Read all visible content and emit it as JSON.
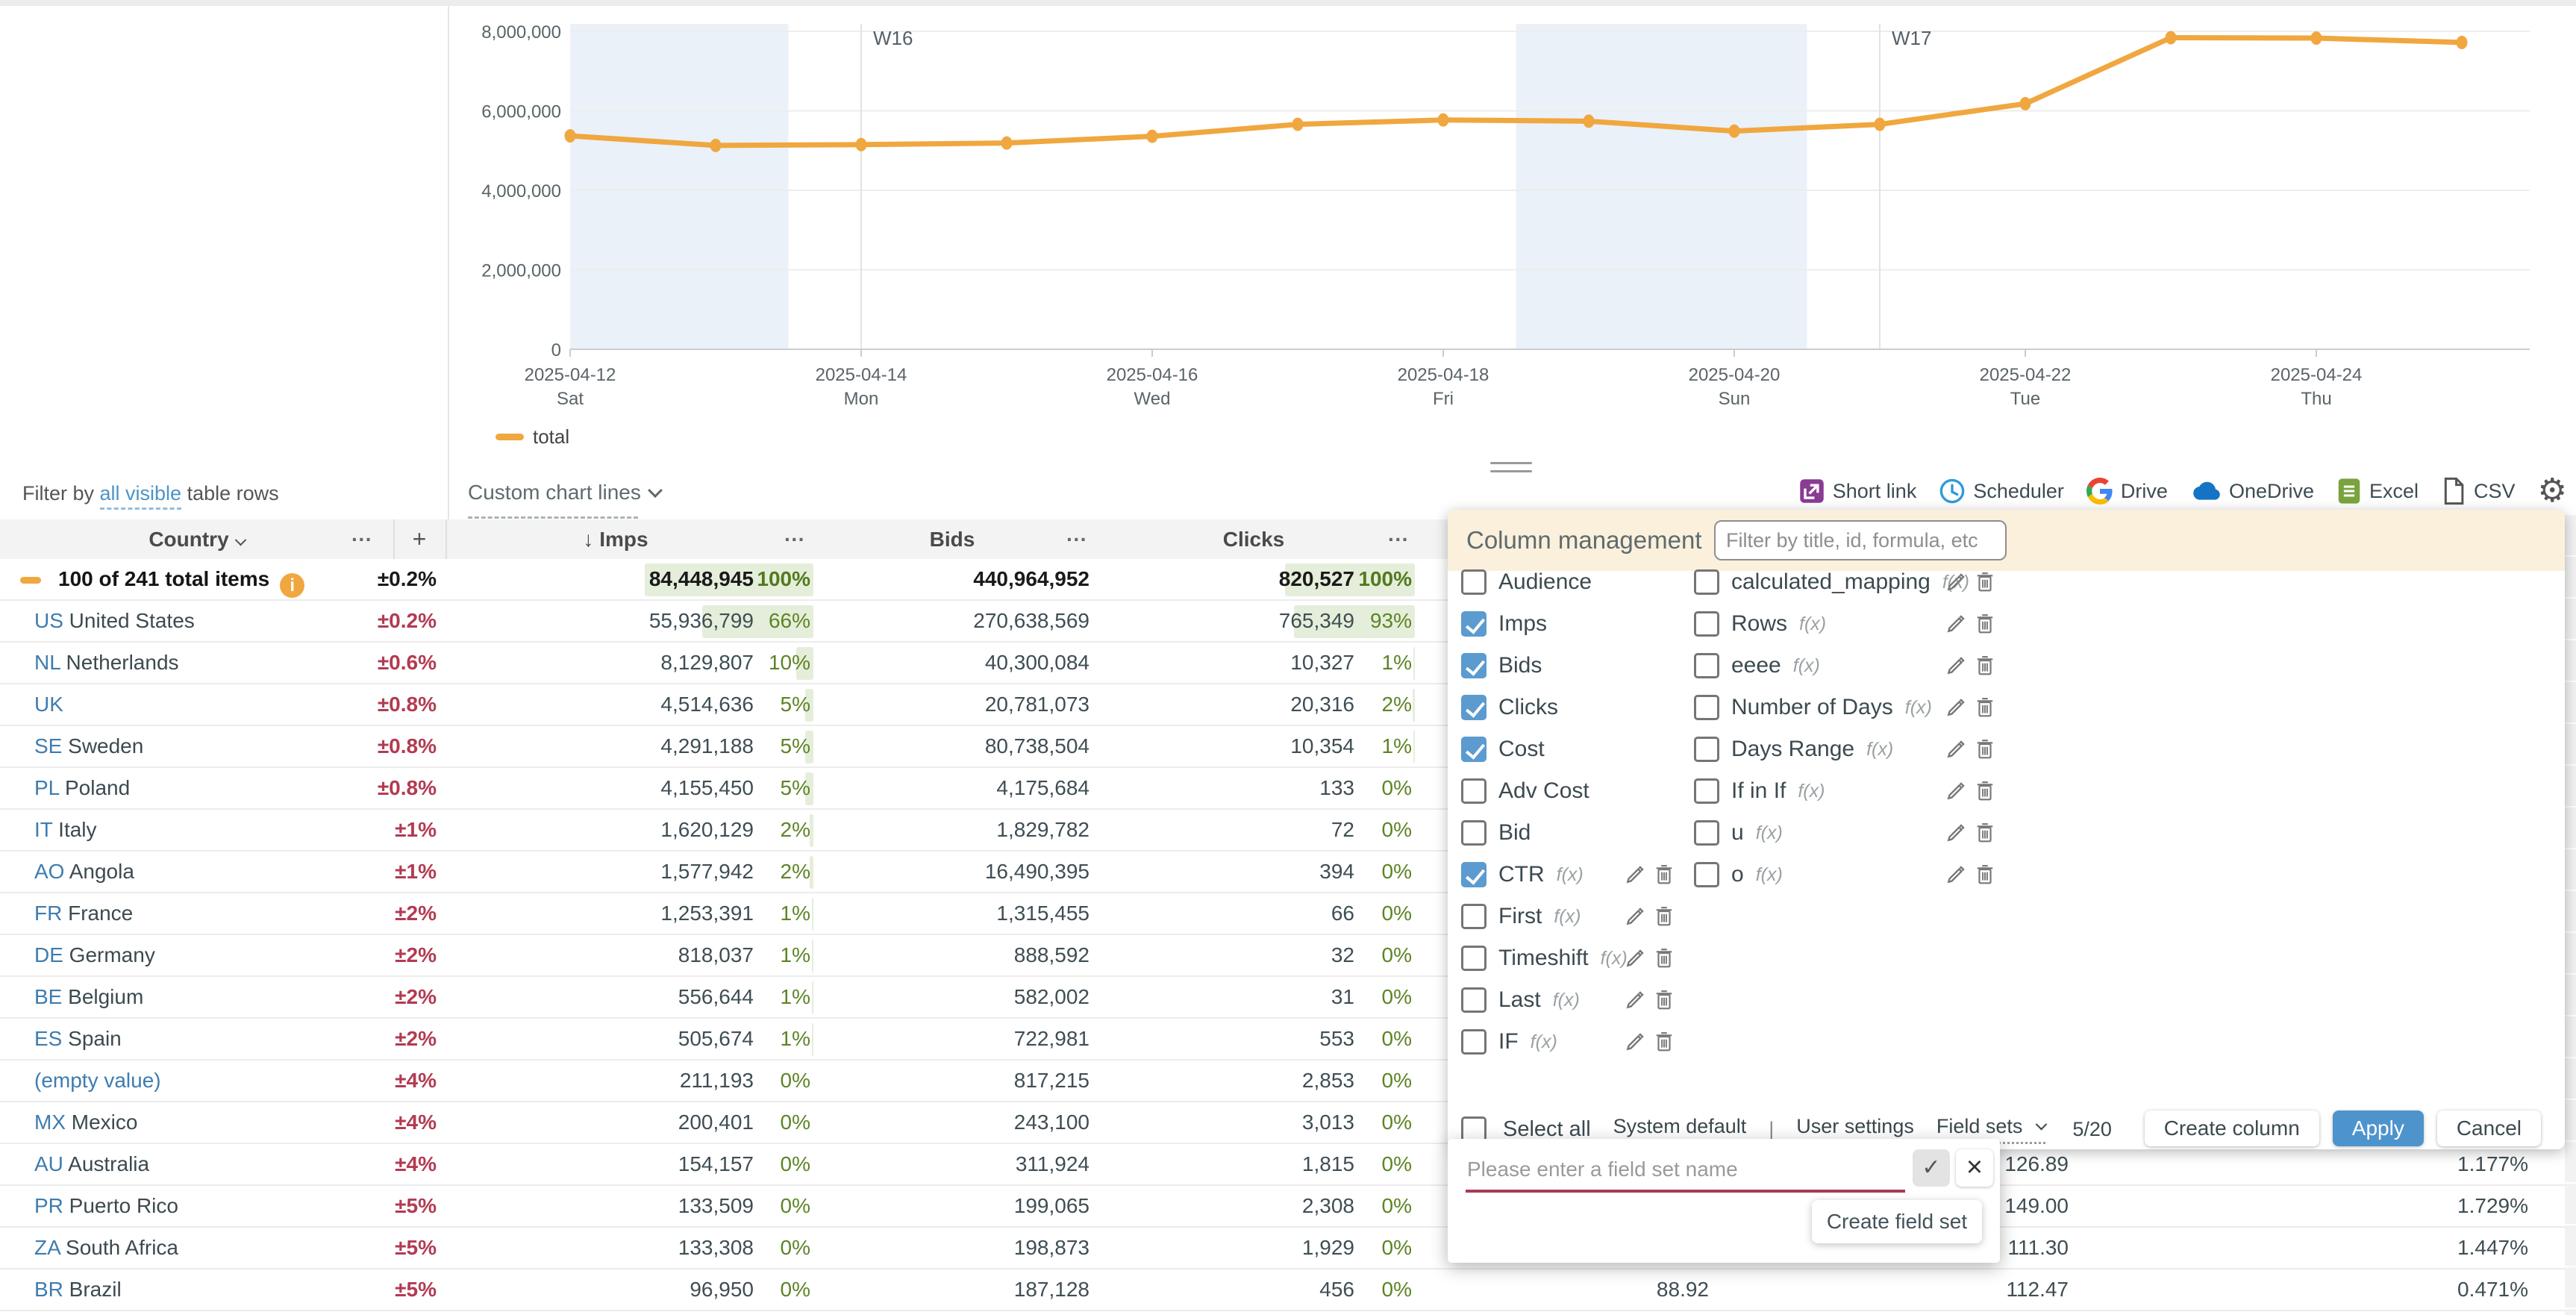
{
  "chart_data": {
    "type": "line",
    "title": "",
    "legend": "total",
    "line_color": "#F0A73F",
    "weekend_band_color": "#EAF1F8",
    "x": [
      "2025-04-12",
      "2025-04-13",
      "2025-04-14",
      "2025-04-15",
      "2025-04-16",
      "2025-04-17",
      "2025-04-18",
      "2025-04-19",
      "2025-04-20",
      "2025-04-21",
      "2025-04-22",
      "2025-04-23",
      "2025-04-24",
      "2025-04-25"
    ],
    "values": [
      5370000,
      5130000,
      5150000,
      5190000,
      5360000,
      5660000,
      5770000,
      5740000,
      5490000,
      5660000,
      6180000,
      7840000,
      7830000,
      7720000
    ],
    "ylim": [
      0,
      8000000
    ],
    "grid": true,
    "legend_position": "bottom-left",
    "y_ticks": [
      {
        "value": 0,
        "label": "0"
      },
      {
        "value": 2000000,
        "label": "2,000,000"
      },
      {
        "value": 4000000,
        "label": "4,000,000"
      },
      {
        "value": 6000000,
        "label": "6,000,000"
      },
      {
        "value": 8000000,
        "label": "8,000,000"
      }
    ],
    "x_ticks": [
      {
        "index": 0,
        "date": "2025-04-12",
        "day": "Sat"
      },
      {
        "index": 2,
        "date": "2025-04-14",
        "day": "Mon"
      },
      {
        "index": 4,
        "date": "2025-04-16",
        "day": "Wed"
      },
      {
        "index": 6,
        "date": "2025-04-18",
        "day": "Fri"
      },
      {
        "index": 8,
        "date": "2025-04-20",
        "day": "Sun"
      },
      {
        "index": 10,
        "date": "2025-04-22",
        "day": "Tue"
      },
      {
        "index": 12,
        "date": "2025-04-24",
        "day": "Thu"
      }
    ],
    "week_markers": [
      {
        "index": 2,
        "label": "W16"
      },
      {
        "index": 9,
        "label": "W17"
      }
    ],
    "weekend_bands": [
      {
        "from": -0.5,
        "to": 1.5
      },
      {
        "from": 6.5,
        "to": 8.5
      }
    ]
  },
  "filter_bar": {
    "prefix": "Filter by ",
    "link": "all visible",
    "suffix": " table rows",
    "custom_chart_lines": "Custom chart lines"
  },
  "export_bar": {
    "items": [
      {
        "label": "Short link"
      },
      {
        "label": "Scheduler"
      },
      {
        "label": "Drive"
      },
      {
        "label": "OneDrive"
      },
      {
        "label": "Excel"
      },
      {
        "label": "CSV"
      }
    ]
  },
  "table": {
    "headers": {
      "country": "Country",
      "menu": "···",
      "plus": "+",
      "sort_icon": "↓",
      "imps": "Imps",
      "bids": "Bids",
      "clicks": "Clicks"
    },
    "rows": [
      {
        "total": true,
        "code": "",
        "name": "100 of 241 total items",
        "pm": "±0.2%",
        "imps": "84,448,945",
        "imps_pct": "100%",
        "imps_bar": 100,
        "bids": "440,964,952",
        "clicks": "820,527",
        "clicks_pct": "100%",
        "clicks_bar": 100
      },
      {
        "code": "US",
        "name": "United States",
        "pm": "±0.2%",
        "imps": "55,936,799",
        "imps_pct": "66%",
        "imps_bar": 66,
        "bids": "270,638,569",
        "clicks": "765,349",
        "clicks_pct": "93%",
        "clicks_bar": 93
      },
      {
        "code": "NL",
        "name": "Netherlands",
        "pm": "±0.6%",
        "imps": "8,129,807",
        "imps_pct": "10%",
        "imps_bar": 10,
        "bids": "40,300,084",
        "clicks": "10,327",
        "clicks_pct": "1%",
        "clicks_bar": 1
      },
      {
        "code": "UK",
        "name": "",
        "pm": "±0.8%",
        "imps": "4,514,636",
        "imps_pct": "5%",
        "imps_bar": 5,
        "bids": "20,781,073",
        "clicks": "20,316",
        "clicks_pct": "2%",
        "clicks_bar": 2
      },
      {
        "code": "SE",
        "name": "Sweden",
        "pm": "±0.8%",
        "imps": "4,291,188",
        "imps_pct": "5%",
        "imps_bar": 5,
        "bids": "80,738,504",
        "clicks": "10,354",
        "clicks_pct": "1%",
        "clicks_bar": 1
      },
      {
        "code": "PL",
        "name": "Poland",
        "pm": "±0.8%",
        "imps": "4,155,450",
        "imps_pct": "5%",
        "imps_bar": 5,
        "bids": "4,175,684",
        "clicks": "133",
        "clicks_pct": "0%",
        "clicks_bar": 0
      },
      {
        "code": "IT",
        "name": "Italy",
        "pm": "±1%",
        "imps": "1,620,129",
        "imps_pct": "2%",
        "imps_bar": 2,
        "bids": "1,829,782",
        "clicks": "72",
        "clicks_pct": "0%",
        "clicks_bar": 0
      },
      {
        "code": "AO",
        "name": "Angola",
        "pm": "±1%",
        "imps": "1,577,942",
        "imps_pct": "2%",
        "imps_bar": 2,
        "bids": "16,490,395",
        "clicks": "394",
        "clicks_pct": "0%",
        "clicks_bar": 0
      },
      {
        "code": "FR",
        "name": "France",
        "pm": "±2%",
        "imps": "1,253,391",
        "imps_pct": "1%",
        "imps_bar": 1,
        "bids": "1,315,455",
        "clicks": "66",
        "clicks_pct": "0%",
        "clicks_bar": 0
      },
      {
        "code": "DE",
        "name": "Germany",
        "pm": "±2%",
        "imps": "818,037",
        "imps_pct": "1%",
        "imps_bar": 1,
        "bids": "888,592",
        "clicks": "32",
        "clicks_pct": "0%",
        "clicks_bar": 0
      },
      {
        "code": "BE",
        "name": "Belgium",
        "pm": "±2%",
        "imps": "556,644",
        "imps_pct": "1%",
        "imps_bar": 1,
        "bids": "582,002",
        "clicks": "31",
        "clicks_pct": "0%",
        "clicks_bar": 0
      },
      {
        "code": "ES",
        "name": "Spain",
        "pm": "±2%",
        "imps": "505,674",
        "imps_pct": "1%",
        "imps_bar": 1,
        "bids": "722,981",
        "clicks": "553",
        "clicks_pct": "0%",
        "clicks_bar": 0
      },
      {
        "empty": true,
        "code": "",
        "name": "(empty value)",
        "pm": "±4%",
        "imps": "211,193",
        "imps_pct": "0%",
        "imps_bar": 0,
        "bids": "817,215",
        "clicks": "2,853",
        "clicks_pct": "0%",
        "clicks_bar": 0
      },
      {
        "code": "MX",
        "name": "Mexico",
        "pm": "±4%",
        "imps": "200,401",
        "imps_pct": "0%",
        "imps_bar": 0,
        "bids": "243,100",
        "clicks": "3,013",
        "clicks_pct": "0%",
        "clicks_bar": 0
      },
      {
        "code": "AU",
        "name": "Australia",
        "pm": "±4%",
        "imps": "154,157",
        "imps_pct": "0%",
        "imps_bar": 0,
        "bids": "311,924",
        "clicks": "1,815",
        "clicks_pct": "0%",
        "clicks_bar": 0,
        "col_b": "126.89",
        "ctr": "1.177%"
      },
      {
        "code": "PR",
        "name": "Puerto Rico",
        "pm": "±5%",
        "imps": "133,509",
        "imps_pct": "0%",
        "imps_bar": 0,
        "bids": "199,065",
        "clicks": "2,308",
        "clicks_pct": "0%",
        "clicks_bar": 0,
        "col_b": "149.00",
        "ctr": "1.729%"
      },
      {
        "code": "ZA",
        "name": "South Africa",
        "pm": "±5%",
        "imps": "133,308",
        "imps_pct": "0%",
        "imps_bar": 0,
        "bids": "198,873",
        "clicks": "1,929",
        "clicks_pct": "0%",
        "clicks_bar": 0,
        "col_b": "111.30",
        "ctr": "1.447%"
      },
      {
        "code": "BR",
        "name": "Brazil",
        "pm": "±5%",
        "imps": "96,950",
        "imps_pct": "0%",
        "imps_bar": 0,
        "bids": "187,128",
        "clicks": "456",
        "clicks_pct": "0%",
        "clicks_bar": 0,
        "cost": "88.92",
        "col_b": "112.47",
        "ctr": "0.471%"
      }
    ]
  },
  "panel": {
    "title": "Column management",
    "filter_placeholder": "Filter by title, id, formula, etc",
    "left_items": [
      {
        "label": "Audience",
        "checked": false
      },
      {
        "label": "Imps",
        "checked": true
      },
      {
        "label": "Bids",
        "checked": true
      },
      {
        "label": "Clicks",
        "checked": true
      },
      {
        "label": "Cost",
        "checked": true
      },
      {
        "label": "Adv Cost",
        "checked": false
      },
      {
        "label": "Bid",
        "checked": false
      },
      {
        "label": "CTR",
        "checked": true,
        "fx": true,
        "actions": true
      },
      {
        "label": "First",
        "checked": false,
        "fx": true,
        "actions": true
      },
      {
        "label": "Timeshift",
        "checked": false,
        "fx": true,
        "actions": true
      },
      {
        "label": "Last",
        "checked": false,
        "fx": true,
        "actions": true
      },
      {
        "label": "IF",
        "checked": false,
        "fx": true,
        "actions": true
      }
    ],
    "right_items": [
      {
        "label": "calculated_mapping",
        "checked": false,
        "fx": true,
        "actions": true
      },
      {
        "label": "Rows",
        "checked": false,
        "fx": true,
        "actions": true
      },
      {
        "label": "eeee",
        "checked": false,
        "fx": true,
        "actions": true
      },
      {
        "label": "Number of Days",
        "checked": false,
        "fx": true,
        "actions": true
      },
      {
        "label": "Days Range",
        "checked": false,
        "fx": true,
        "actions": true
      },
      {
        "label": "If in If",
        "checked": false,
        "fx": true,
        "actions": true
      },
      {
        "label": "u",
        "checked": false,
        "fx": true,
        "actions": true
      },
      {
        "label": "o",
        "checked": false,
        "fx": true,
        "actions": true
      }
    ],
    "footer": {
      "select_all": "Select all",
      "system_default": "System default",
      "divider": "|",
      "user_settings": "User settings",
      "field_sets": "Field sets",
      "counter": "5/20",
      "create_column": "Create column",
      "apply": "Apply",
      "cancel": "Cancel"
    }
  },
  "fieldset_popup": {
    "placeholder": "Please enter a field set name",
    "create_button": "Create field set"
  }
}
